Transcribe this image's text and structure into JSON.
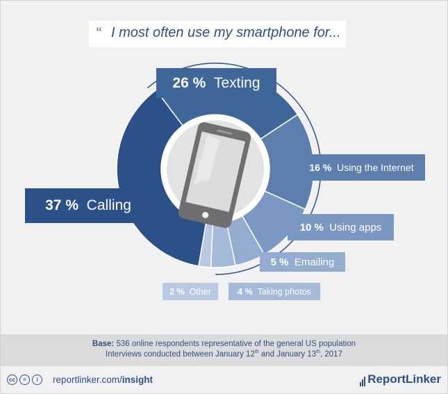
{
  "title": "I most often use my smartphone for...",
  "quote_mark": "“",
  "chart_data": {
    "type": "pie",
    "title": "I most often use my smartphone for...",
    "slices": [
      {
        "label": "Texting",
        "value": 26,
        "pct_text": "26 %",
        "color": "#3e6699"
      },
      {
        "label": "Using the Internet",
        "value": 16,
        "pct_text": "16 %",
        "color": "#5c7fad"
      },
      {
        "label": "Using apps",
        "value": 10,
        "pct_text": "10 %",
        "color": "#7b98c2"
      },
      {
        "label": "Emailing",
        "value": 5,
        "pct_text": "5 %",
        "color": "#93acd0"
      },
      {
        "label": "Taking photos",
        "value": 4,
        "pct_text": "4 %",
        "color": "#a6bbd9"
      },
      {
        "label": "Other",
        "value": 2,
        "pct_text": "2 %",
        "color": "#b9c9e1"
      },
      {
        "label": "Calling",
        "value": 37,
        "pct_text": "37 %",
        "color": "#2c5189"
      }
    ]
  },
  "footer": {
    "base_label": "Base:",
    "base_text": "536 online respondents representative of the general US population",
    "interview_pre": "Interviews conducted between January 12",
    "sup1": "th",
    "interview_mid": " and January 13",
    "sup2": "th",
    "interview_post": ", 2017",
    "site_text": "reportlinker.com/",
    "site_bold": "insight",
    "brand": "ReportLinker",
    "cc_labels": [
      "cc",
      "=",
      "i"
    ]
  }
}
